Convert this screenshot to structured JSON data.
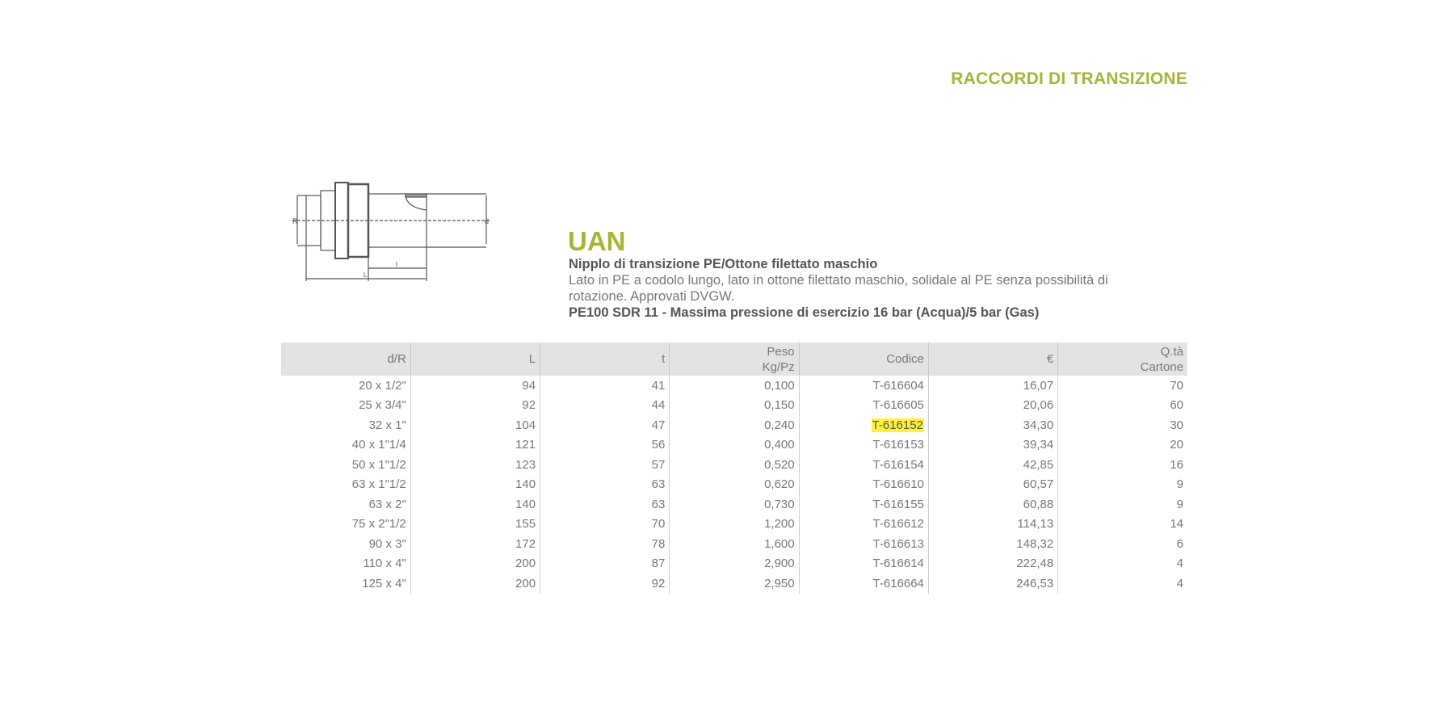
{
  "section_title": "RACCORDI DI TRANSIZIONE",
  "product": {
    "code": "UAN",
    "subtitle": "Nipplo di transizione PE/Ottone filettato maschio",
    "description": "Lato in PE a codolo lungo, lato in ottone filettato maschio, solidale al PE senza possibilità di rotazione. Approvati DVGW.",
    "spec": "PE100 SDR 11 - Massima pressione di esercizio 16 bar (Acqua)/5 bar (Gas)"
  },
  "diagram_labels": {
    "R": "R",
    "d": "d",
    "t": "t",
    "L": "L"
  },
  "highlight_color": "#fff23a",
  "accent_color": "#a5b535",
  "table": {
    "headers": [
      "d/R",
      "L",
      "t",
      "Peso\nKg/Pz",
      "Codice",
      "€",
      "Q.tà\nCartone"
    ],
    "rows": [
      [
        "20 x 1/2\"",
        "94",
        "41",
        "0,100",
        "T-616604",
        "16,07",
        "70"
      ],
      [
        "25 x 3/4\"",
        "92",
        "44",
        "0,150",
        "T-616605",
        "20,06",
        "60"
      ],
      [
        "32 x 1\"",
        "104",
        "47",
        "0,240",
        "T-616152",
        "34,30",
        "30"
      ],
      [
        "40 x 1\"1/4",
        "121",
        "56",
        "0,400",
        "T-616153",
        "39,34",
        "20"
      ],
      [
        "50 x 1\"1/2",
        "123",
        "57",
        "0,520",
        "T-616154",
        "42,85",
        "16"
      ],
      [
        "63 x 1\"1/2",
        "140",
        "63",
        "0,620",
        "T-616610",
        "60,57",
        "9"
      ],
      [
        "63 x 2\"",
        "140",
        "63",
        "0,730",
        "T-616155",
        "60,88",
        "9"
      ],
      [
        "75 x 2\"1/2",
        "155",
        "70",
        "1,200",
        "T-616612",
        "114,13",
        "14"
      ],
      [
        "90 x 3\"",
        "172",
        "78",
        "1,600",
        "T-616613",
        "148,32",
        "6"
      ],
      [
        "110 x 4\"",
        "200",
        "87",
        "2,900",
        "T-616614",
        "222,48",
        "4"
      ],
      [
        "125 x 4\"",
        "200",
        "92",
        "2,950",
        "T-616664",
        "246,53",
        "4"
      ]
    ],
    "highlighted_code": "T-616152"
  }
}
